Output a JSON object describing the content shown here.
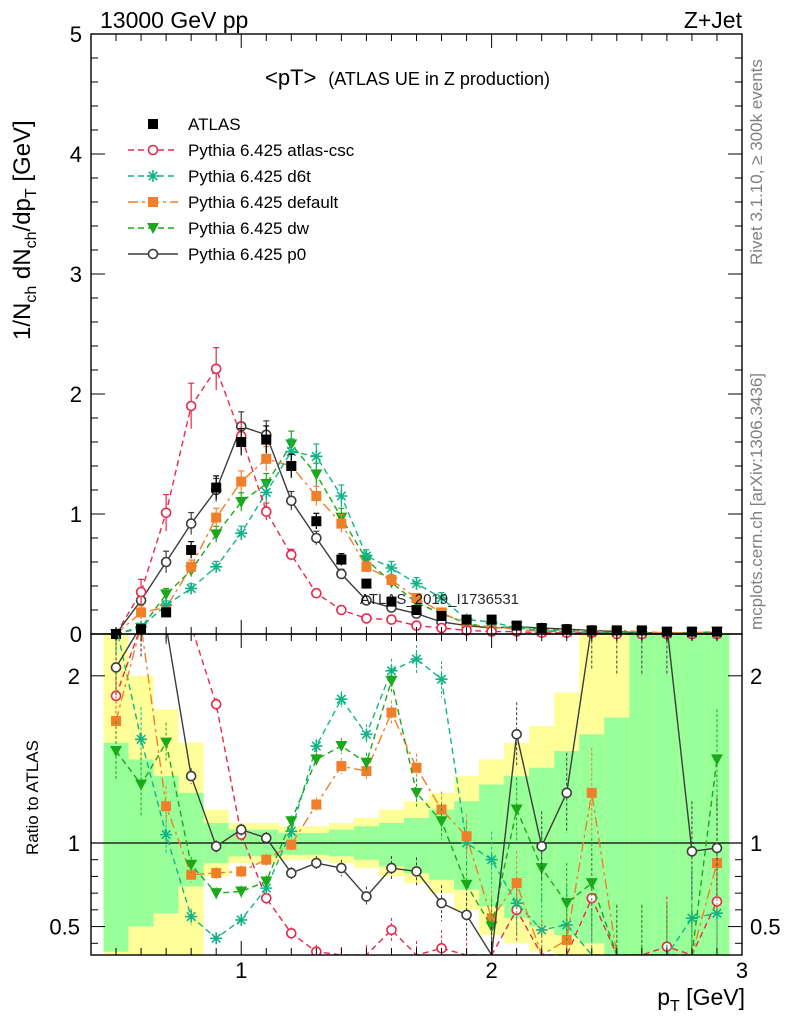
{
  "header": {
    "left": "13000 GeV pp",
    "right": "Z+Jet"
  },
  "plot_title": "<pT>",
  "plot_subtitle": "(ATLAS UE in Z production)",
  "side_labels": {
    "rivet": "Rivet 3.1.10, ≥ 300k events",
    "mcplots": "mcplots.cern.ch [arXiv:1306.3436]"
  },
  "watermark": "ATLAS_2019_I1736531",
  "axis_labels": {
    "y_main": "1/N_ch dN_ch/dp_T [GeV]",
    "y_ratio": "Ratio to ATLAS",
    "x": "p_T [GeV]"
  },
  "colors": {
    "data": "#000000",
    "atlas_csc": "#e8284a",
    "d6t": "#11b488",
    "default": "#f07f2a",
    "dw": "#1ba81b",
    "p0": "#3c3c3c",
    "band_inner": "#99ff99",
    "band_outer": "#ffff99"
  },
  "chart_data": [
    {
      "type": "line",
      "panel": "main",
      "xlim": [
        0.4,
        3.0
      ],
      "ylim": [
        0,
        5
      ],
      "x_ticks": [
        1,
        2,
        3
      ],
      "y_ticks": [
        0,
        1,
        2,
        3,
        4,
        5
      ],
      "legend_position": "top-left",
      "x": [
        0.5,
        0.6,
        0.7,
        0.8,
        0.9,
        1.0,
        1.1,
        1.2,
        1.3,
        1.4,
        1.5,
        1.6,
        1.7,
        1.8,
        1.9,
        2.0,
        2.1,
        2.2,
        2.3,
        2.4,
        2.5,
        2.6,
        2.7,
        2.8,
        2.9
      ],
      "series": [
        {
          "name": "ATLAS",
          "marker": "square-filled",
          "key": "data",
          "values": [
            0.0,
            0.04,
            0.18,
            0.7,
            1.22,
            1.6,
            1.62,
            1.4,
            0.94,
            0.62,
            0.42,
            0.27,
            0.2,
            0.15,
            0.12,
            0.12,
            0.07,
            0.05,
            0.04,
            0.03,
            0.03,
            0.03,
            0.02,
            0.02,
            0.02
          ]
        },
        {
          "name": "Pythia 6.425 atlas-csc",
          "marker": "circle-open",
          "key": "atlas_csc",
          "dash": "6,4",
          "values": [
            0.0,
            0.35,
            1.01,
            1.9,
            2.21,
            1.65,
            1.02,
            0.66,
            0.34,
            0.2,
            0.13,
            0.12,
            0.07,
            0.05,
            0.03,
            0.02,
            0.02,
            0.01,
            0.01,
            0.01,
            0.0,
            0.0,
            0.0,
            0.0,
            0.0
          ]
        },
        {
          "name": "Pythia 6.425 d6t",
          "marker": "star",
          "key": "d6t",
          "dash": "6,4",
          "values": [
            0.0,
            0.06,
            0.24,
            0.38,
            0.56,
            0.84,
            1.18,
            1.52,
            1.48,
            1.15,
            0.65,
            0.55,
            0.42,
            0.3,
            0.12,
            0.1,
            0.05,
            0.03,
            0.02,
            0.01,
            0.01,
            0.0,
            0.0,
            0.0,
            0.0
          ]
        },
        {
          "name": "Pythia 6.425 default",
          "marker": "square-filled",
          "key": "default",
          "dash": "10,4,3,4",
          "values": [
            0.0,
            0.18,
            0.22,
            0.56,
            0.97,
            1.27,
            1.46,
            1.4,
            1.15,
            0.92,
            0.56,
            0.45,
            0.3,
            0.18,
            0.08,
            0.06,
            0.04,
            0.02,
            0.02,
            0.03,
            0.03,
            0.02,
            0.01,
            0.01,
            0.02
          ]
        },
        {
          "name": "Pythia 6.425 dw",
          "marker": "triangle-down-filled",
          "key": "dw",
          "dash": "6,4",
          "values": [
            0.0,
            0.05,
            0.33,
            0.53,
            0.83,
            1.1,
            1.25,
            1.58,
            1.33,
            0.97,
            0.62,
            0.43,
            0.26,
            0.17,
            0.09,
            0.05,
            0.06,
            0.04,
            0.03,
            0.02,
            0.01,
            0.01,
            0.01,
            0.01,
            0.02
          ]
        },
        {
          "name": "Pythia 6.425 p0",
          "marker": "circle-open",
          "key": "p0",
          "dash": "",
          "values": [
            0.0,
            0.28,
            0.6,
            0.92,
            1.2,
            1.73,
            1.66,
            1.11,
            0.8,
            0.5,
            0.28,
            0.22,
            0.17,
            0.1,
            0.07,
            0.05,
            0.06,
            0.05,
            0.04,
            0.03,
            0.02,
            0.01,
            0.01,
            0.01,
            0.01
          ]
        }
      ],
      "error_fraction": [
        0,
        0.3,
        0.15,
        0.1,
        0.08,
        0.07,
        0.07,
        0.07,
        0.07,
        0.08,
        0.08,
        0.1,
        0.12,
        0.15,
        0.2,
        0.25,
        0.3,
        0.35,
        0.4,
        0.45,
        0.5,
        0.55,
        0.6,
        0.65,
        0.7
      ]
    },
    {
      "type": "line",
      "panel": "ratio",
      "xlim": [
        0.4,
        3.0
      ],
      "ylim": [
        0.33,
        2.25
      ],
      "y_ticks": [
        0.5,
        1,
        2
      ],
      "x": [
        0.5,
        0.6,
        0.7,
        0.8,
        0.9,
        1.0,
        1.1,
        1.2,
        1.3,
        1.4,
        1.5,
        1.6,
        1.7,
        1.8,
        1.9,
        2.0,
        2.1,
        2.2,
        2.3,
        2.4,
        2.5,
        2.6,
        2.7,
        2.8,
        2.9
      ],
      "band_edges": [
        0.45,
        0.55,
        0.65,
        0.75,
        0.85,
        0.95,
        1.05,
        1.15,
        1.25,
        1.35,
        1.45,
        1.55,
        1.65,
        1.75,
        1.85,
        1.95,
        2.05,
        2.15,
        2.25,
        2.35,
        2.45,
        2.55,
        2.65,
        2.75,
        2.85,
        2.95
      ],
      "band_inner_up": [
        1.6,
        1.5,
        1.4,
        1.3,
        1.12,
        1.08,
        1.08,
        1.06,
        1.06,
        1.08,
        1.1,
        1.12,
        1.15,
        1.2,
        1.25,
        1.35,
        1.4,
        1.45,
        1.55,
        1.65,
        1.75,
        2.25,
        2.25,
        2.25,
        2.25
      ],
      "band_inner_down": [
        0.35,
        0.5,
        0.58,
        0.74,
        0.88,
        0.92,
        0.92,
        0.93,
        0.93,
        0.92,
        0.9,
        0.86,
        0.82,
        0.78,
        0.72,
        0.62,
        0.55,
        0.5,
        0.45,
        0.4,
        0.33,
        0.33,
        0.33,
        0.33,
        0.33
      ],
      "band_outer_up": [
        2.25,
        2.0,
        1.8,
        1.6,
        1.2,
        1.12,
        1.12,
        1.1,
        1.1,
        1.12,
        1.15,
        1.2,
        1.25,
        1.3,
        1.4,
        1.5,
        1.6,
        1.7,
        1.9,
        2.25,
        2.25,
        2.25,
        2.25,
        2.25,
        2.25
      ],
      "band_outer_down": [
        0.33,
        0.33,
        0.33,
        0.33,
        0.8,
        0.88,
        0.88,
        0.9,
        0.9,
        0.88,
        0.85,
        0.8,
        0.76,
        0.7,
        0.6,
        0.45,
        0.4,
        0.35,
        0.33,
        0.33,
        0.33,
        0.33,
        0.33,
        0.33,
        0.33
      ],
      "series": [
        {
          "name": "ATLAS",
          "key": "data",
          "values": [
            1,
            1,
            1,
            1,
            1,
            1,
            1,
            1,
            1,
            1,
            1,
            1,
            1,
            1,
            1,
            1,
            1,
            1,
            1,
            1,
            1,
            1,
            1,
            1,
            1
          ]
        },
        {
          "name": "Pythia 6.425 atlas-csc",
          "key": "atlas_csc",
          "values": [
            1.88,
            2.3,
            2.3,
            2.3,
            1.83,
            1.05,
            0.67,
            0.46,
            0.35,
            0.33,
            0.33,
            0.48,
            0.33,
            0.37,
            0.33,
            0.33,
            0.6,
            0.33,
            0.33,
            0.67,
            0.33,
            0.33,
            0.38,
            0.33,
            0.65
          ]
        },
        {
          "name": "Pythia 6.425 d6t",
          "key": "d6t",
          "values": [
            2.3,
            1.62,
            1.05,
            0.56,
            0.43,
            0.54,
            0.73,
            1.07,
            1.58,
            1.86,
            1.65,
            2.03,
            2.1,
            1.98,
            1.0,
            0.9,
            0.64,
            0.48,
            0.51,
            0.33,
            0.33,
            0.33,
            0.33,
            0.55,
            0.58
          ]
        },
        {
          "name": "Pythia 6.425 default",
          "key": "default",
          "values": [
            1.73,
            2.3,
            1.22,
            0.81,
            0.82,
            0.83,
            0.9,
            0.99,
            1.23,
            1.46,
            1.43,
            1.78,
            1.45,
            1.2,
            1.04,
            0.55,
            0.76,
            0.33,
            0.42,
            1.3,
            0.33,
            0.33,
            0.33,
            0.33,
            0.88
          ]
        },
        {
          "name": "Pythia 6.425 dw",
          "key": "dw",
          "values": [
            1.55,
            1.35,
            1.6,
            0.87,
            0.7,
            0.71,
            0.77,
            1.13,
            1.5,
            1.58,
            1.48,
            1.97,
            1.3,
            1.13,
            0.75,
            0.5,
            1.2,
            0.85,
            0.64,
            0.76,
            0.33,
            0.33,
            0.33,
            0.33,
            1.5
          ]
        },
        {
          "name": "Pythia 6.425 p0",
          "key": "p0",
          "values": [
            2.05,
            2.3,
            2.3,
            1.4,
            0.98,
            1.08,
            1.03,
            0.82,
            0.88,
            0.85,
            0.68,
            0.85,
            0.83,
            0.64,
            0.57,
            0.33,
            1.65,
            0.98,
            1.3,
            2.3,
            2.3,
            2.3,
            2.3,
            0.95,
            0.97
          ]
        }
      ],
      "data_error": [
        0.3,
        0.32,
        0.2,
        0.08,
        0.06,
        0.06,
        0.06,
        0.06,
        0.07,
        0.08,
        0.1,
        0.12,
        0.14,
        0.18,
        0.22,
        0.28,
        0.32,
        0.35,
        0.4,
        0.45,
        0.5,
        0.55,
        0.6,
        0.65,
        0.7
      ]
    }
  ]
}
